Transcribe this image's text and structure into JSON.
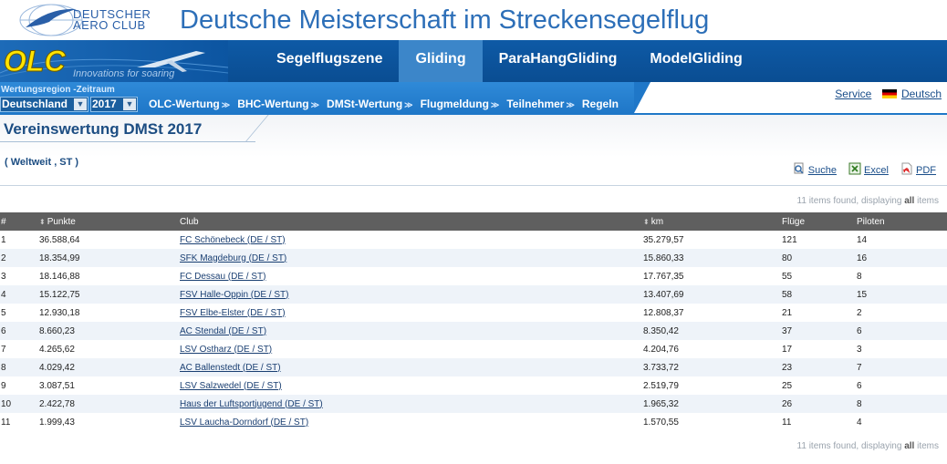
{
  "header": {
    "org_line1": "DEUTSCHER",
    "org_line2": "AERO CLUB",
    "title": "Deutsche Meisterschaft im Streckensegelflug"
  },
  "nav": {
    "logo_text": "OLC",
    "logo_tagline": "Innovations for soaring",
    "tabs": [
      {
        "label": "Segelflugszene",
        "active": false
      },
      {
        "label": "Gliding",
        "active": true
      },
      {
        "label": "ParaHangGliding",
        "active": false
      },
      {
        "label": "ModelGliding",
        "active": false
      }
    ]
  },
  "subbar": {
    "region_label": "Wertungsregion -Zeitraum",
    "region_value": "Deutschland",
    "year_value": "2017",
    "menus": [
      "OLC-Wertung",
      "BHC-Wertung",
      "DMSt-Wertung",
      "Flugmeldung",
      "Teilnehmer",
      "Regeln"
    ],
    "service": "Service",
    "language": "Deutsch"
  },
  "page": {
    "title": "Vereinswertung DMSt 2017",
    "subtitle": "( Weltweit , ST )",
    "exports": {
      "search": "Suche",
      "excel": "Excel",
      "pdf": "PDF"
    },
    "items_found_prefix": "11 items found, displaying ",
    "items_found_all": "all",
    "items_found_suffix": " items"
  },
  "table": {
    "headers": [
      "#",
      "Punkte",
      "Club",
      "km",
      "Flüge",
      "Piloten"
    ],
    "rows": [
      [
        "1",
        "36.588,64",
        "FC Schönebeck (DE / ST)",
        "35.279,57",
        "121",
        "14"
      ],
      [
        "2",
        "18.354,99",
        "SFK Magdeburg (DE / ST)",
        "15.860,33",
        "80",
        "16"
      ],
      [
        "3",
        "18.146,88",
        "FC Dessau (DE / ST)",
        "17.767,35",
        "55",
        "8"
      ],
      [
        "4",
        "15.122,75",
        "FSV Halle-Oppin (DE / ST)",
        "13.407,69",
        "58",
        "15"
      ],
      [
        "5",
        "12.930,18",
        "FSV Elbe-Elster (DE / ST)",
        "12.808,37",
        "21",
        "2"
      ],
      [
        "6",
        "8.660,23",
        "AC Stendal (DE / ST)",
        "8.350,42",
        "37",
        "6"
      ],
      [
        "7",
        "4.265,62",
        "LSV Ostharz (DE / ST)",
        "4.204,76",
        "17",
        "3"
      ],
      [
        "8",
        "4.029,42",
        "AC Ballenstedt (DE / ST)",
        "3.733,72",
        "23",
        "7"
      ],
      [
        "9",
        "3.087,51",
        "LSV Salzwedel (DE / ST)",
        "2.519,79",
        "25",
        "6"
      ],
      [
        "10",
        "2.422,78",
        "Haus der Luftsportjugend (DE / ST)",
        "1.965,32",
        "26",
        "8"
      ],
      [
        "11",
        "1.999,43",
        "LSV Laucha-Dorndorf (DE / ST)",
        "1.570,55",
        "11",
        "4"
      ]
    ]
  }
}
